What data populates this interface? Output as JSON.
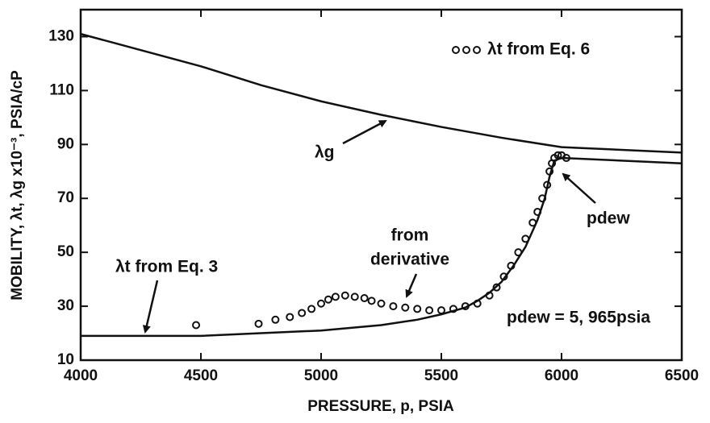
{
  "chart_data": {
    "type": "line",
    "xlabel": "PRESSURE, p, PSIA",
    "ylabel": "MOBILITY, λt, λg x10⁻³, PSIA/cP",
    "xlim": [
      4000,
      6500
    ],
    "xticks": [
      4000,
      4500,
      5000,
      5500,
      6000,
      6500
    ],
    "ylim": [
      10,
      140
    ],
    "yticks": [
      10,
      30,
      50,
      70,
      90,
      110,
      130
    ],
    "series": [
      {
        "name": "λg",
        "color": "#111111",
        "style": "line",
        "x": [
          4000,
          4250,
          4500,
          4750,
          5000,
          5250,
          5500,
          5750,
          6000,
          6250,
          6500
        ],
        "values": [
          131,
          125,
          119,
          112,
          106,
          101,
          96.5,
          92.5,
          89,
          88,
          87
        ]
      },
      {
        "name": "λt from Eq. 3",
        "color": "#111111",
        "style": "line",
        "x": [
          4000,
          4250,
          4500,
          4750,
          5000,
          5250,
          5400,
          5500,
          5600,
          5650,
          5700,
          5750,
          5800,
          5850,
          5900,
          5930,
          5950,
          5970,
          6000,
          6250,
          6500
        ],
        "values": [
          19,
          19,
          19,
          20,
          21,
          23,
          25,
          27,
          29.5,
          32,
          35,
          39,
          45,
          52,
          62,
          70,
          78,
          84,
          85,
          84,
          83
        ]
      },
      {
        "name": "λt from Eq. 6",
        "color": "#111111",
        "style": "markers",
        "x": [
          4480,
          4740,
          4810,
          4870,
          4920,
          4960,
          5000,
          5030,
          5060,
          5100,
          5140,
          5180,
          5210,
          5250,
          5300,
          5350,
          5400,
          5450,
          5500,
          5550,
          5600,
          5650,
          5700,
          5730,
          5760,
          5790,
          5820,
          5850,
          5880,
          5900,
          5920,
          5940,
          5950,
          5960,
          5970,
          5985,
          6000,
          6020
        ],
        "values": [
          23,
          23.5,
          25,
          26,
          27.5,
          29,
          31,
          32.5,
          33.5,
          34,
          33.5,
          33,
          32,
          31,
          30,
          29.5,
          29,
          28.5,
          28.5,
          29,
          30,
          31,
          34,
          37,
          41,
          45,
          50,
          55,
          61,
          65,
          70,
          75,
          80,
          83,
          85,
          86,
          86,
          85
        ]
      }
    ],
    "annotations": [
      {
        "text": "from"
      },
      {
        "text": "derivative"
      },
      {
        "text": "pdew"
      },
      {
        "text": "pdew = 5, 965psia"
      }
    ]
  }
}
